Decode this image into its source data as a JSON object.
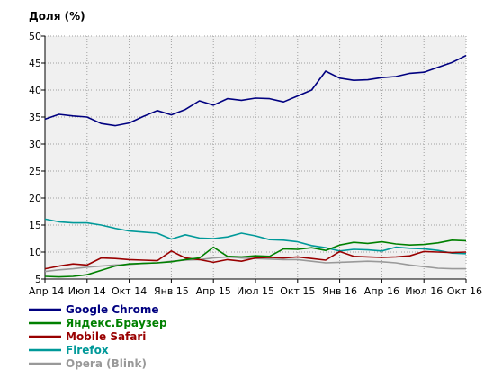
{
  "chart_data": {
    "type": "line",
    "ylabel": "Доля (%)",
    "ylim": [
      5,
      50
    ],
    "yticks": [
      5,
      10,
      15,
      20,
      25,
      30,
      35,
      40,
      45,
      50
    ],
    "xlim": [
      0,
      30
    ],
    "xticks": [
      {
        "x": 0,
        "label": "Апр 14"
      },
      {
        "x": 3,
        "label": "Июл 14"
      },
      {
        "x": 6,
        "label": "Окт 14"
      },
      {
        "x": 9,
        "label": "Янв 15"
      },
      {
        "x": 12,
        "label": "Апр 15"
      },
      {
        "x": 15,
        "label": "Июл 15"
      },
      {
        "x": 18,
        "label": "Окт 15"
      },
      {
        "x": 21,
        "label": "Янв 16"
      },
      {
        "x": 24,
        "label": "Апр 16"
      },
      {
        "x": 27,
        "label": "Июл 16"
      },
      {
        "x": 30,
        "label": "Окт 16"
      }
    ],
    "grid": true,
    "legend_position": "bottom-left",
    "series": [
      {
        "name": "Google Chrome",
        "color": "#000080",
        "values": [
          34.6,
          35.5,
          35.2,
          35.0,
          33.8,
          33.4,
          33.9,
          35.1,
          36.2,
          35.4,
          36.4,
          38.0,
          37.2,
          38.4,
          38.1,
          38.5,
          38.4,
          37.8,
          38.9,
          40.0,
          43.5,
          42.2,
          41.8,
          41.9,
          42.3,
          42.5,
          43.1,
          43.3,
          44.2,
          45.1,
          46.4
        ]
      },
      {
        "name": "Яндекс.Браузер",
        "color": "#008000",
        "values": [
          5.5,
          5.4,
          5.5,
          5.8,
          6.6,
          7.4,
          7.8,
          7.9,
          8.0,
          8.2,
          8.6,
          8.9,
          10.9,
          9.2,
          9.1,
          9.3,
          9.2,
          10.6,
          10.5,
          10.8,
          10.3,
          11.3,
          11.8,
          11.6,
          11.9,
          11.5,
          11.3,
          11.4,
          11.7,
          12.2,
          12.1
        ]
      },
      {
        "name": "Mobile Safari",
        "color": "#990000",
        "values": [
          6.9,
          7.4,
          7.8,
          7.6,
          8.9,
          8.8,
          8.6,
          8.5,
          8.4,
          10.2,
          8.9,
          8.6,
          8.1,
          8.6,
          8.3,
          8.9,
          9.0,
          8.9,
          9.1,
          8.8,
          8.5,
          10.1,
          9.2,
          9.1,
          9.0,
          9.1,
          9.3,
          10.1,
          10.0,
          9.9,
          10.0
        ]
      },
      {
        "name": "Firefox",
        "color": "#009999",
        "values": [
          16.1,
          15.6,
          15.4,
          15.4,
          15.0,
          14.4,
          13.9,
          13.7,
          13.5,
          12.4,
          13.2,
          12.6,
          12.5,
          12.8,
          13.5,
          13.0,
          12.3,
          12.2,
          11.9,
          11.2,
          10.8,
          10.2,
          10.5,
          10.4,
          10.2,
          10.9,
          10.7,
          10.6,
          10.3,
          9.8,
          9.7
        ]
      },
      {
        "name": "Opera (Blink)",
        "color": "#999999",
        "values": [
          6.4,
          6.7,
          6.9,
          7.2,
          7.4,
          7.6,
          7.7,
          7.9,
          8.0,
          8.3,
          8.5,
          8.6,
          8.9,
          9.1,
          8.9,
          8.8,
          8.7,
          8.6,
          8.6,
          8.3,
          8.0,
          8.1,
          8.2,
          8.3,
          8.2,
          8.0,
          7.6,
          7.3,
          7.0,
          6.9,
          6.9
        ]
      }
    ]
  }
}
